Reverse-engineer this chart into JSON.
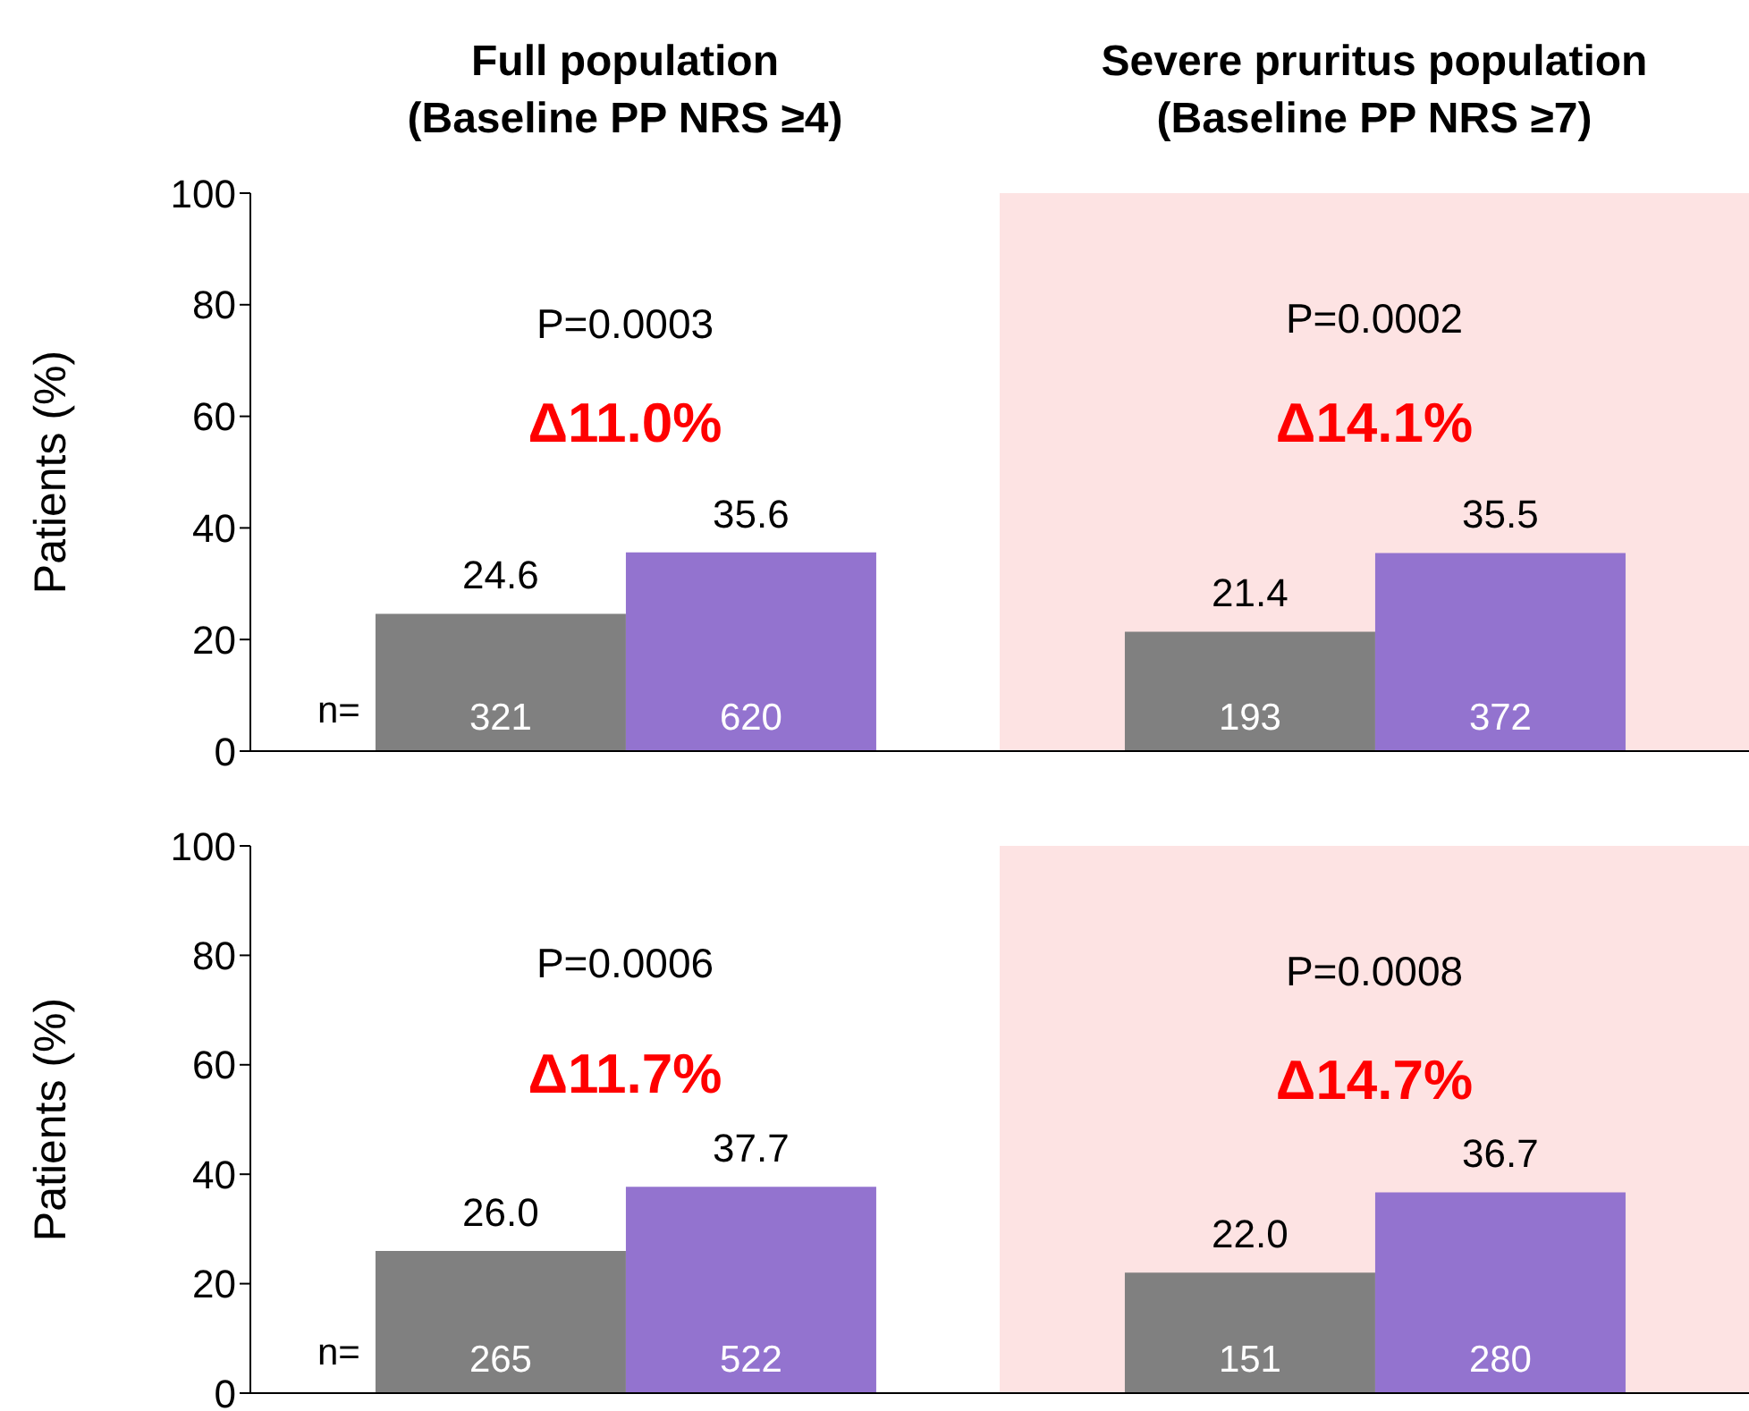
{
  "chart_data": [
    {
      "type": "bar",
      "categories": [
        "Full population\n(Baseline PP NRS ≥4)",
        "Severe pruritus population\n(Baseline PP NRS ≥7)"
      ],
      "ylabel": "Patients (%)",
      "series": [
        {
          "color": "#808080",
          "values": [
            24.6,
            21.4
          ],
          "value_labels": [
            "24.6",
            "21.4"
          ]
        },
        {
          "color": "#9373cf",
          "values": [
            35.6,
            35.5
          ],
          "value_labels": [
            "35.6",
            "35.5"
          ]
        }
      ],
      "ylim": [
        0,
        100
      ],
      "yticks": [
        0,
        20,
        40,
        60,
        80,
        100
      ],
      "grid": false,
      "legend": false,
      "bands": [
        {
          "axis": "x",
          "from": "Severe pruritus population\n(Baseline PP NRS ≥7)",
          "to": "Severe pruritus population\n(Baseline PP NRS ≥7)",
          "color": "#fde3e3"
        }
      ],
      "annotations": [
        "n=",
        "321",
        "620",
        "193",
        "372",
        "P=0.0003",
        "Δ11.0%",
        "P=0.0002",
        "Δ14.1%"
      ]
    },
    {
      "type": "bar",
      "categories": [
        "Full population\n(Baseline PP NRS ≥4)",
        "Severe pruritus population\n(Baseline PP NRS ≥7)"
      ],
      "ylabel": "Patients (%)",
      "tick_labels": "y",
      "series": [
        {
          "color": "#808080",
          "values": [
            26.0,
            22.0
          ],
          "value_labels": [
            "26.0",
            "22.0"
          ]
        },
        {
          "color": "#9373cf",
          "values": [
            37.7,
            36.7
          ],
          "value_labels": [
            "37.7",
            "36.7"
          ]
        }
      ],
      "ylim": [
        0,
        100
      ],
      "yticks": [
        0,
        20,
        40,
        60,
        80,
        100
      ],
      "grid": false,
      "legend": false,
      "bands": [
        {
          "axis": "x",
          "from": "Severe pruritus population\n(Baseline PP NRS ≥7)",
          "to": "Severe pruritus population\n(Baseline PP NRS ≥7)",
          "color": "#fde3e3"
        }
      ],
      "annotations": [
        "n=",
        "265",
        "522",
        "151",
        "280",
        "P=0.0006",
        "Δ11.7%",
        "P=0.0008",
        "Δ14.7%"
      ]
    }
  ]
}
